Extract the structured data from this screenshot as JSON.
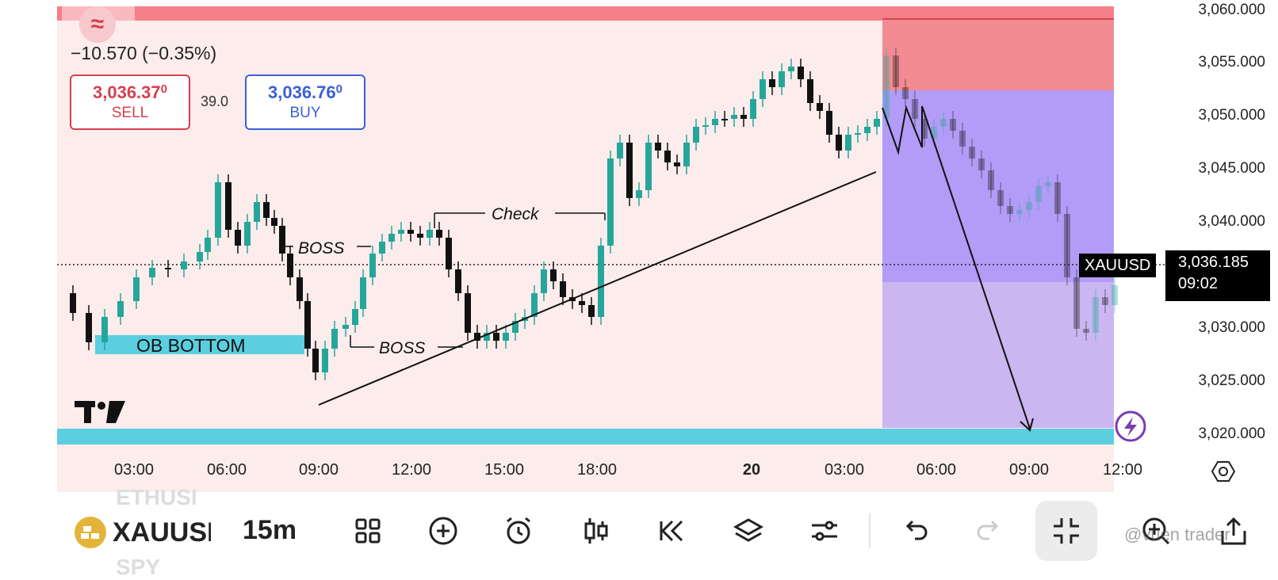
{
  "header": {
    "change": "−10.570 (−0.35%)",
    "sell_price_main": "3,036.37",
    "sell_price_sup": "0",
    "sell_label": "SELL",
    "spread": "39.0",
    "buy_price_main": "3,036.76",
    "buy_price_sup": "0",
    "buy_label": "BUY"
  },
  "annotations": {
    "ob_bottom": "OB BOTTOM",
    "boss_1": "BOSS",
    "boss_2": "BOSS",
    "check": "Check"
  },
  "price_axis": {
    "ticks": [
      "3,060.000",
      "3,055.000",
      "3,050.000",
      "3,045.000",
      "3,040.000",
      "3,030.000",
      "3,025.000",
      "3,020.000"
    ],
    "current_symbol": "XAUUSD",
    "current_price": "3,036.185",
    "countdown": "09:02"
  },
  "time_axis": {
    "ticks": [
      "03:00",
      "06:00",
      "09:00",
      "12:00",
      "15:00",
      "18:00",
      "20",
      "03:00",
      "06:00",
      "09:00",
      "12:00"
    ]
  },
  "toolbar": {
    "symbol": "XAUUSI",
    "symbol_above": "ETHUSI",
    "symbol_below": "SPY",
    "timeframe": "15m",
    "watermark": "@vuen trader"
  },
  "colors": {
    "bull": "#26a69a",
    "bear": "#111111",
    "chart_bg": "#fdecec",
    "sell": "#d6404f",
    "buy": "#2962ff",
    "cyan_zone": "#5bcfe0",
    "stop_zone": "#f28b92",
    "target_zone": "#b3a1f5"
  }
}
